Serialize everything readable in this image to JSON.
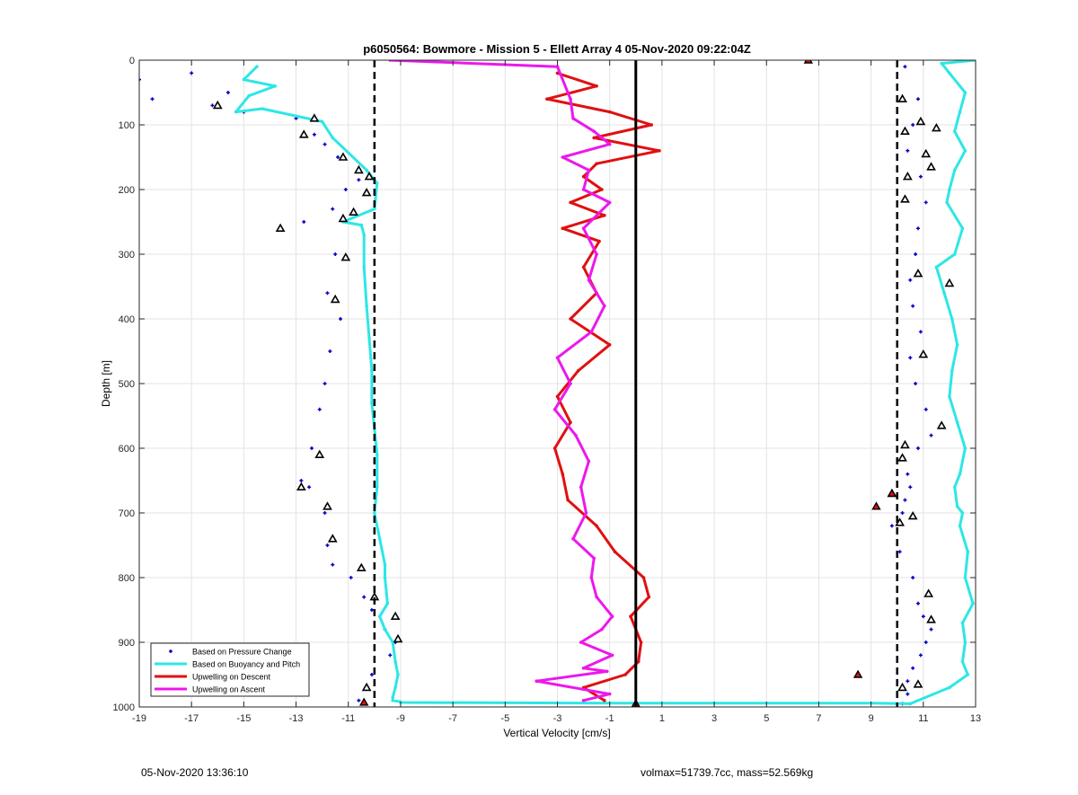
{
  "chart_data": {
    "type": "scatter",
    "title": "p6050564: Bowmore - Mission 5 - Ellett Array 4 05-Nov-2020 09:22:04Z",
    "xlabel": "Vertical Velocity [cm/s]",
    "ylabel": "Depth [m]",
    "xlim": [
      -19,
      13
    ],
    "ylim": [
      0,
      1000
    ],
    "y_reversed": true,
    "grid": true,
    "legend_position": "bottom-left",
    "x_ticks": [
      -19,
      -17,
      -15,
      -13,
      -11,
      -9,
      -7,
      -5,
      -3,
      -1,
      1,
      3,
      5,
      7,
      9,
      11,
      13
    ],
    "y_ticks": [
      0,
      100,
      200,
      300,
      400,
      500,
      600,
      700,
      800,
      900,
      1000
    ],
    "x_tick_labels": [
      "-19",
      "-17",
      "-15",
      "-13",
      "-11",
      "-9",
      "-7",
      "-5",
      "-3",
      "-1",
      "1",
      "3",
      "5",
      "7",
      "9",
      "11",
      "13"
    ],
    "y_tick_labels": [
      "0",
      "100",
      "200",
      "300",
      "400",
      "500",
      "600",
      "700",
      "800",
      "900",
      "1000"
    ],
    "reference_lines": [
      {
        "x": -10,
        "style": "dashed",
        "color": "#000000"
      },
      {
        "x": 0,
        "style": "solid",
        "color": "#000000"
      },
      {
        "x": 10,
        "style": "dashed",
        "color": "#000000"
      }
    ],
    "series": [
      {
        "name": "Based on Pressure Change",
        "kind": "points",
        "color": "#0000c8",
        "x": [
          -19.0,
          -18.5,
          -17.0,
          -16.2,
          -15.6,
          -15.0,
          -13.0,
          -12.3,
          -11.9,
          -11.4,
          -10.6,
          -11.1,
          -11.6,
          -12.7,
          -11.5,
          -11.8,
          -11.3,
          -11.7,
          -11.9,
          -12.1,
          -12.4,
          -12.8,
          -12.5,
          -11.9,
          -11.8,
          -11.6,
          -10.9,
          -10.4,
          -10.1,
          -9.6,
          -9.2,
          -9.4,
          -10.1,
          -10.3,
          -10.6,
          10.3,
          10.8,
          10.6,
          10.4,
          10.9,
          11.1,
          10.8,
          10.7,
          10.5,
          10.6,
          10.9,
          10.5,
          10.7,
          11.1,
          11.3,
          10.8,
          10.4,
          10.5,
          10.3,
          10.2,
          9.8,
          10.1,
          10.6,
          10.8,
          11.0,
          11.3,
          11.1,
          10.9,
          10.6,
          10.4,
          10.4,
          10.2
        ],
        "y": [
          30,
          60,
          20,
          70,
          50,
          80,
          90,
          115,
          130,
          150,
          185,
          200,
          230,
          250,
          300,
          360,
          400,
          450,
          500,
          540,
          600,
          650,
          660,
          700,
          750,
          780,
          800,
          830,
          850,
          880,
          900,
          920,
          950,
          970,
          990,
          10,
          60,
          100,
          140,
          180,
          220,
          260,
          300,
          340,
          380,
          420,
          460,
          500,
          540,
          580,
          600,
          640,
          660,
          680,
          700,
          720,
          760,
          800,
          840,
          860,
          880,
          900,
          920,
          940,
          960,
          980,
          995
        ]
      },
      {
        "name": "Based on Buoyancy and Pitch",
        "kind": "line",
        "color": "#2ee6e6",
        "x": [
          -14.5,
          -15.0,
          -13.8,
          -14.8,
          -15.3,
          -14.3,
          -12.0,
          -11.6,
          -10.3,
          -9.9,
          -10.0,
          -11.2,
          -10.5,
          -10.4,
          -10.4,
          -10.3,
          -10.2,
          -10.1,
          -10.1,
          -10.0,
          -9.9,
          -9.9,
          -10.0,
          -9.8,
          -9.6,
          -9.6,
          -9.5,
          -9.8,
          -9.6,
          -9.3,
          -9.2,
          -9.1,
          -9.2,
          -9.3,
          -9.3,
          -9.0,
          null,
          -9.0,
          -1.0,
          3.0,
          9.0,
          10.5,
          12.0,
          12.7,
          12.5,
          12.6,
          12.5,
          12.9,
          12.6,
          12.7,
          12.4,
          12.5,
          12.3,
          12.2,
          12.4,
          12.6,
          12.3,
          12.0,
          12.1,
          12.3,
          12.1,
          11.8,
          11.5,
          12.2,
          12.5,
          11.9,
          12.0,
          12.2,
          12.6,
          12.2,
          12.4,
          12.6,
          12.0,
          11.7,
          13.0
        ],
        "y": [
          10,
          30,
          40,
          55,
          80,
          75,
          95,
          120,
          170,
          190,
          230,
          250,
          255,
          270,
          320,
          380,
          430,
          480,
          530,
          570,
          610,
          660,
          700,
          740,
          780,
          800,
          840,
          860,
          880,
          900,
          930,
          950,
          970,
          985,
          990,
          992,
          null,
          993,
          994,
          994,
          994,
          995,
          970,
          950,
          930,
          900,
          870,
          840,
          800,
          760,
          720,
          700,
          690,
          660,
          640,
          600,
          560,
          520,
          480,
          440,
          400,
          360,
          320,
          300,
          260,
          220,
          200,
          170,
          140,
          110,
          80,
          50,
          20,
          5,
          0
        ]
      },
      {
        "name": "Upwelling on Descent",
        "kind": "line",
        "color": "#e01010",
        "x": [
          -3.0,
          -1.5,
          -3.4,
          -1.0,
          0.6,
          -1.6,
          0.9,
          -1.5,
          -2.0,
          -1.3,
          -2.5,
          -1.2,
          -2.8,
          -1.4,
          -2.0,
          -1.5,
          -2.5,
          -1.0,
          -2.2,
          -3.0,
          -2.5,
          -3.1,
          -2.8,
          -2.6,
          -1.5,
          -0.8,
          0.3,
          0.5,
          -0.2,
          0.2,
          0.1,
          -0.4,
          -2.0,
          -1.2
        ],
        "y": [
          20,
          40,
          60,
          80,
          100,
          120,
          140,
          160,
          180,
          200,
          220,
          240,
          260,
          280,
          320,
          360,
          400,
          440,
          480,
          520,
          560,
          600,
          640,
          680,
          720,
          760,
          800,
          830,
          860,
          900,
          930,
          950,
          970,
          990
        ]
      },
      {
        "name": "Upwelling on Ascent",
        "kind": "line",
        "color": "#ec18ec",
        "x": [
          -9.4,
          -3.0,
          -2.5,
          -2.4,
          -1.6,
          -1.0,
          -2.8,
          -1.8,
          -2.0,
          -1.0,
          -2.0,
          -1.5,
          -1.8,
          -1.2,
          -1.7,
          -3.0,
          -2.5,
          -3.1,
          -2.3,
          -1.8,
          -2.1,
          -1.9,
          -2.4,
          -1.6,
          -1.7,
          -1.5,
          -0.9,
          -1.3,
          -2.1,
          -0.9,
          -2.0,
          -1.1,
          -3.8,
          -1.0,
          -2.0
        ],
        "y": [
          0,
          10,
          60,
          90,
          110,
          130,
          150,
          170,
          200,
          220,
          260,
          300,
          340,
          380,
          420,
          460,
          500,
          540,
          580,
          620,
          660,
          700,
          740,
          770,
          800,
          830,
          860,
          880,
          900,
          920,
          940,
          945,
          960,
          980,
          990
        ]
      }
    ],
    "markers": {
      "open_triangles_x": [
        -16.0,
        -12.3,
        -12.7,
        -11.2,
        -10.6,
        -10.2,
        -10.3,
        -10.8,
        -11.2,
        -13.6,
        -11.1,
        -11.5,
        -12.1,
        -12.8,
        -11.8,
        -11.6,
        -10.5,
        -10.0,
        -9.2,
        -9.1,
        -10.3,
        10.2,
        10.3,
        10.9,
        11.5,
        11.1,
        11.3,
        10.4,
        10.3,
        10.8,
        12.0,
        11.0,
        11.7,
        10.3,
        10.2,
        9.8,
        10.6,
        10.1,
        11.2,
        11.3,
        10.2,
        10.8
      ],
      "open_triangles_y": [
        70,
        90,
        115,
        150,
        170,
        180,
        205,
        235,
        245,
        260,
        305,
        370,
        610,
        660,
        690,
        740,
        785,
        830,
        860,
        895,
        970,
        60,
        110,
        95,
        105,
        145,
        165,
        180,
        215,
        330,
        345,
        455,
        565,
        595,
        615,
        670,
        705,
        715,
        825,
        865,
        970,
        965
      ],
      "filled_triangles_x": [
        6.6,
        8.5,
        9.2,
        9.8,
        0.0,
        -10.4
      ],
      "filled_triangles_y": [
        0,
        950,
        690,
        670,
        995,
        993
      ]
    }
  },
  "legend": {
    "entries": [
      "Based on Pressure Change",
      "Based on Buoyancy and Pitch",
      "Upwelling on Descent",
      "Upwelling on Ascent"
    ]
  },
  "footer": {
    "timestamp": "05-Nov-2020 13:36:10",
    "vessel_info": "volmax=51739.7cc, mass=52.569kg"
  }
}
